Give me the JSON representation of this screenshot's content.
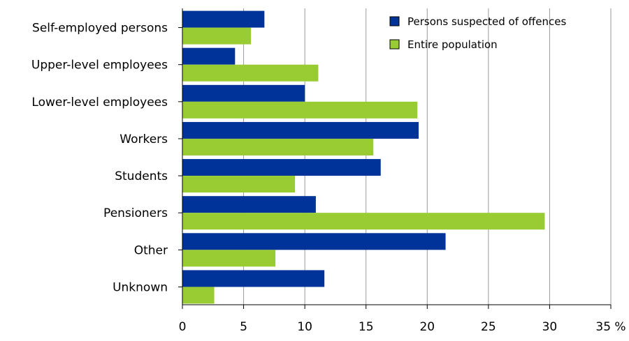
{
  "chart_data": {
    "type": "bar",
    "orientation": "horizontal",
    "categories": [
      "Self-employed persons",
      "Upper-level employees",
      "Lower-level employees",
      "Workers",
      "Students",
      "Pensioners",
      "Other",
      "Unknown"
    ],
    "series": [
      {
        "name": "Persons suspected of offences",
        "color": "#003399",
        "values": [
          6.7,
          4.3,
          10.0,
          19.3,
          16.2,
          10.9,
          21.5,
          11.6
        ]
      },
      {
        "name": "Entire population",
        "color": "#99cc33",
        "values": [
          5.6,
          11.1,
          19.2,
          15.6,
          9.2,
          29.6,
          7.6,
          2.6
        ]
      }
    ],
    "x_ticks": [
      "0",
      "5",
      "10",
      "15",
      "20",
      "25",
      "30",
      "35 %"
    ],
    "xlim": [
      0,
      35
    ],
    "grid": "vertical",
    "legend_position": "top-right"
  }
}
